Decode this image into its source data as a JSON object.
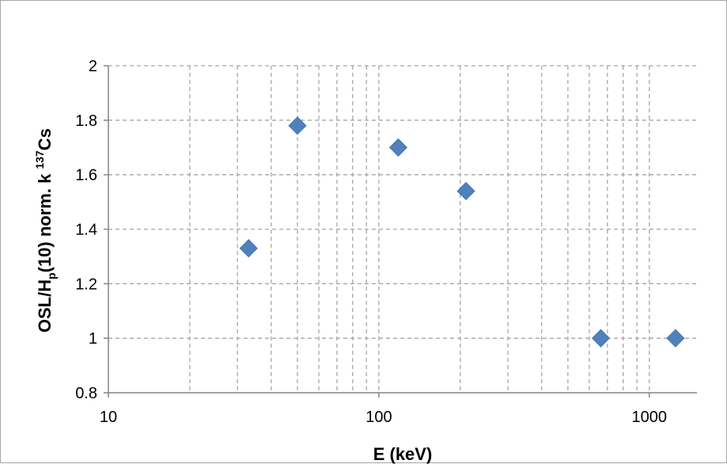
{
  "chart_data": {
    "type": "scatter",
    "title": "",
    "xlabel": "E (keV)",
    "ylabel": {
      "part1": "OSL/H",
      "sub": "p",
      "part2": "(10)  norm. k ",
      "sup": "137",
      "part3": "Cs"
    },
    "x_scale": "log",
    "xlim": [
      10,
      1500
    ],
    "ylim": [
      0.8,
      2.0
    ],
    "x_ticks": [
      10,
      100,
      1000
    ],
    "x_tick_labels": [
      "10",
      "100",
      "1000"
    ],
    "y_ticks": [
      0.8,
      1.0,
      1.2,
      1.4,
      1.6,
      1.8,
      2.0
    ],
    "y_tick_labels": [
      "0.8",
      "1",
      "1.2",
      "1.4",
      "1.6",
      "1.8",
      "2"
    ],
    "grid": true,
    "marker": "diamond",
    "marker_color": "#4f81bd",
    "series": [
      {
        "x": [
          33,
          50,
          118,
          210,
          662,
          1250
        ],
        "y": [
          1.33,
          1.78,
          1.7,
          1.54,
          1.0,
          1.0
        ]
      }
    ]
  }
}
